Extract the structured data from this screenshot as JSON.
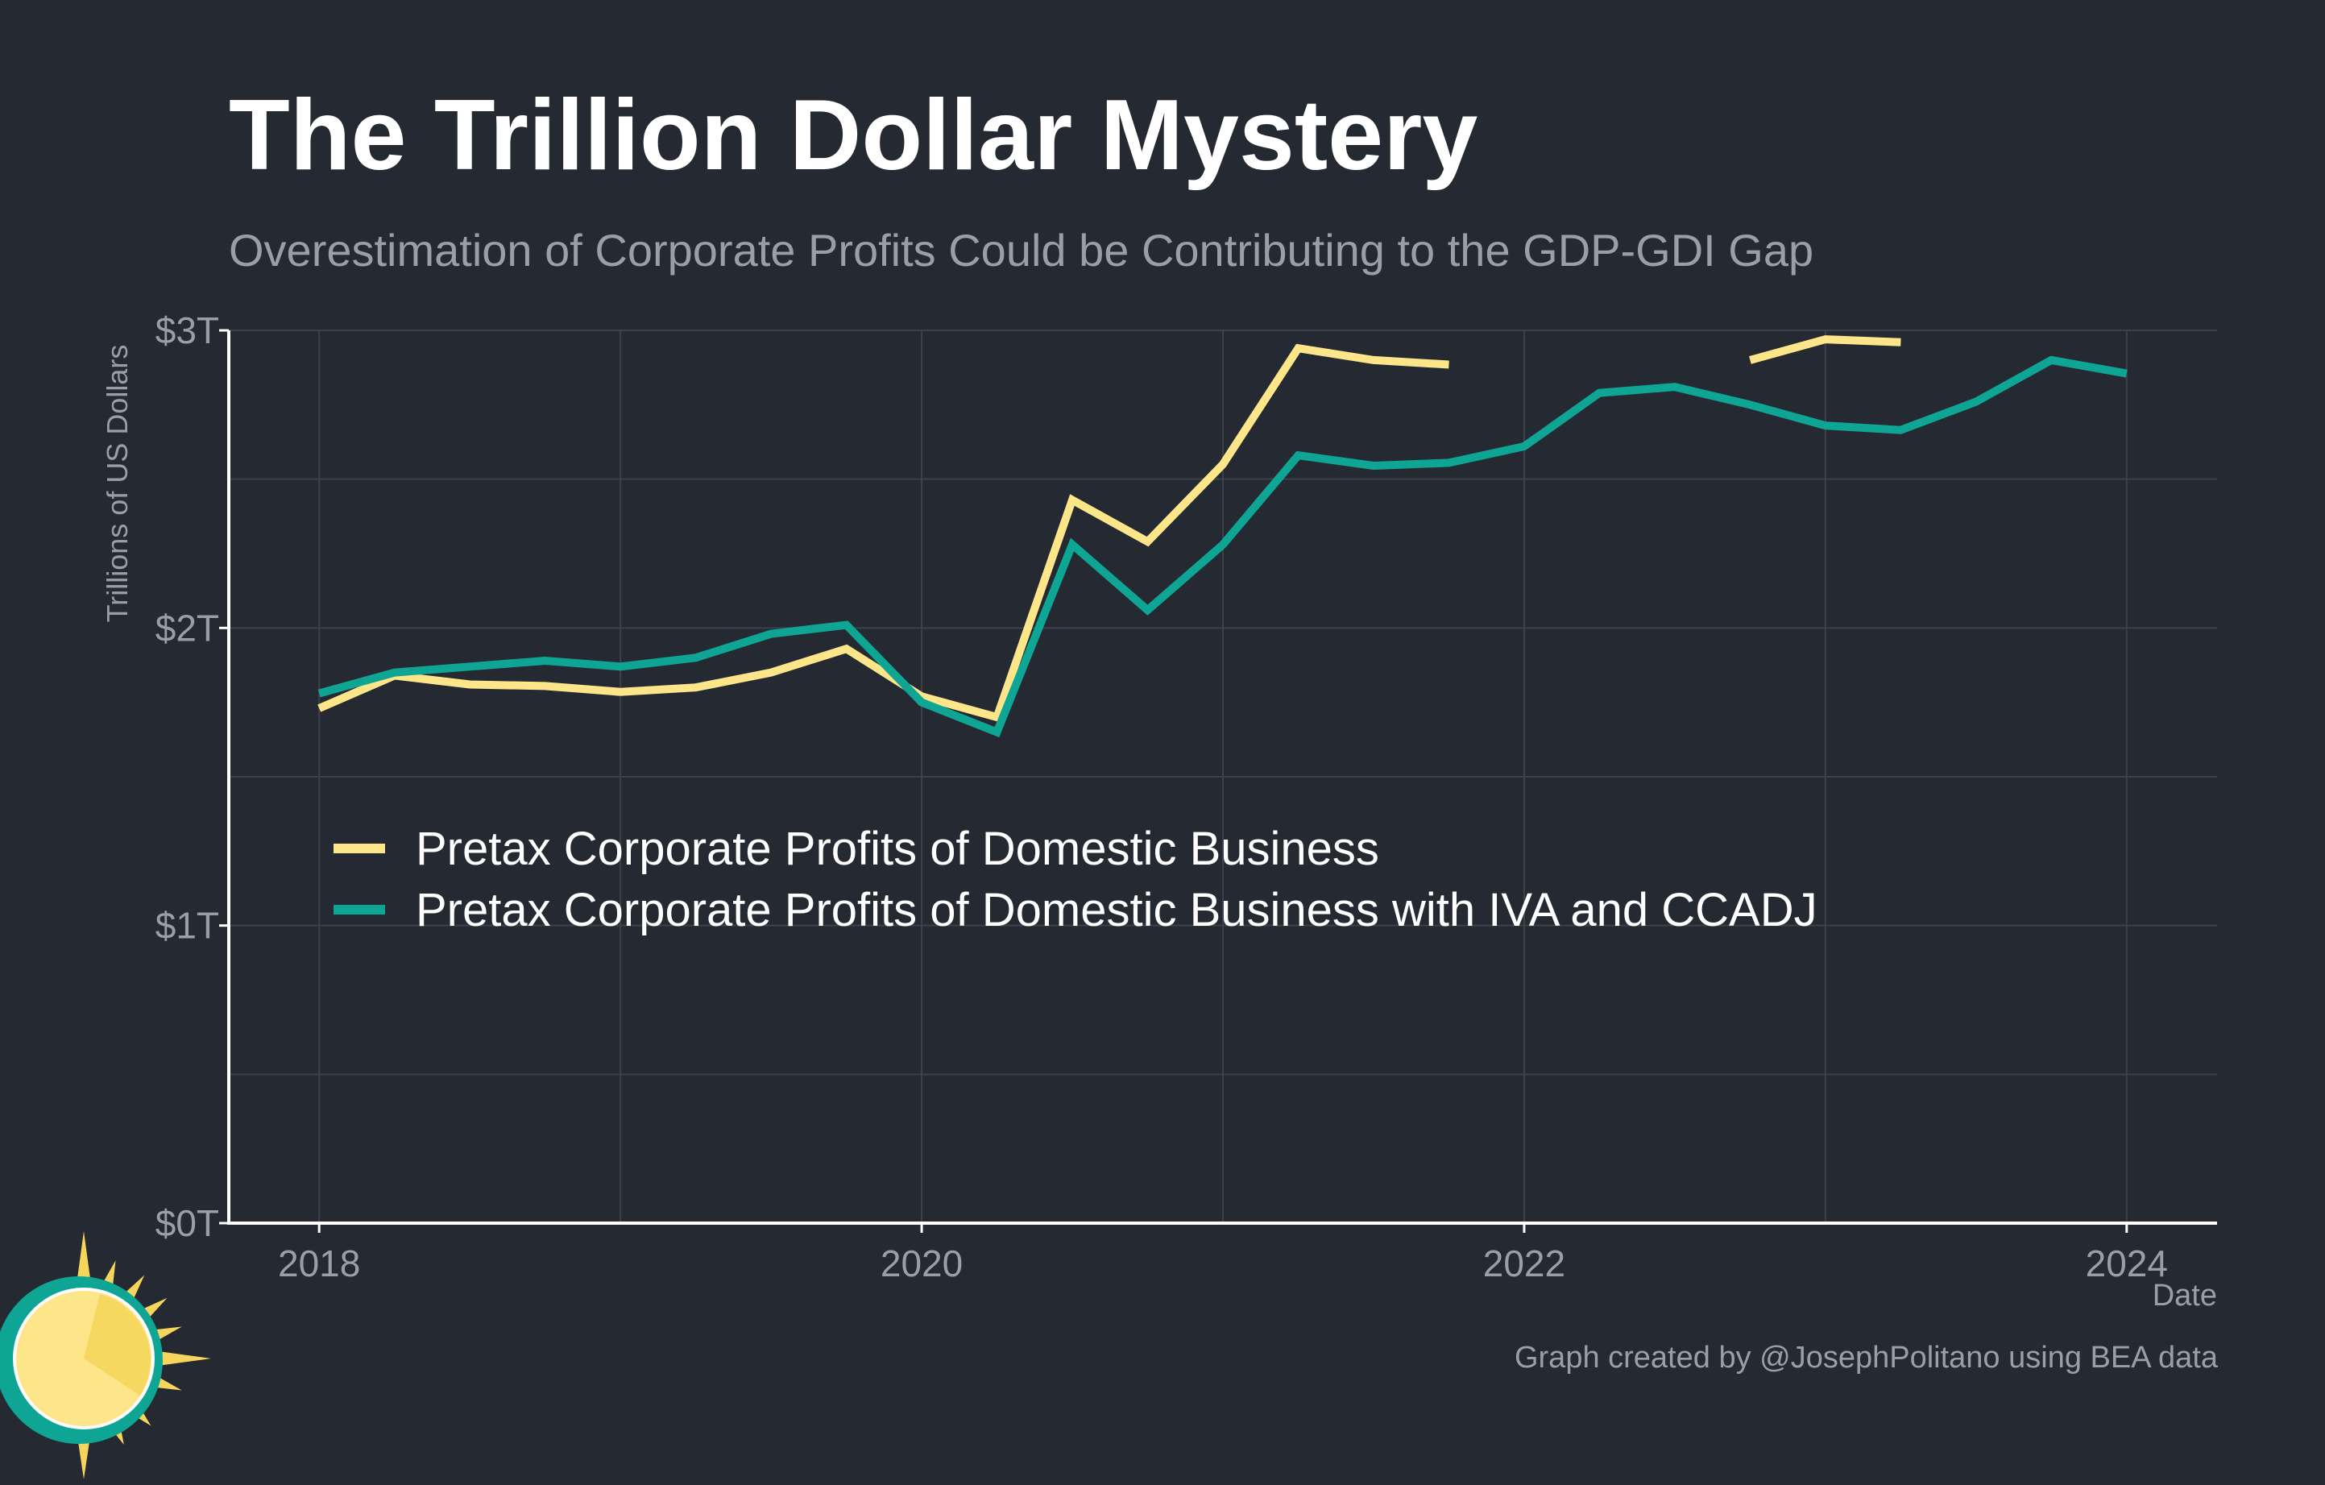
{
  "header": {
    "title": "The Trillion Dollar Mystery",
    "subtitle": "Overestimation of Corporate Profits Could be Contributing to the GDP-GDI Gap"
  },
  "footer": {
    "credit": "Graph created by @JosephPolitano using BEA data"
  },
  "colors": {
    "background": "#252932",
    "grid": "#3c414a",
    "axis": "#ffffff",
    "tick_text": "#9a9ea6",
    "series_1": "#fde68a",
    "series_2": "#0ea595",
    "logo_sun": "#fde68a",
    "logo_ring": "#0ea595"
  },
  "logo": {
    "icon": "sun-logo-icon"
  },
  "chart_data": {
    "type": "line",
    "xlabel": "Date",
    "ylabel": "Trillions of US Dollars",
    "xlim": [
      2017.7,
      2024.3
    ],
    "ylim": [
      0,
      3
    ],
    "x_ticks": [
      2018,
      2020,
      2022,
      2024
    ],
    "x_tick_labels": [
      "2018",
      "2020",
      "2022",
      "2024"
    ],
    "y_ticks": [
      0,
      1,
      2,
      3
    ],
    "y_tick_labels": [
      "$0T",
      "$1T",
      "$2T",
      "$3T"
    ],
    "grid": true,
    "legend_position": "center-left",
    "series": [
      {
        "name": "Pretax Corporate Profits of Domestic Business",
        "color": "#fde68a",
        "points": [
          [
            2018.0,
            1.73
          ],
          [
            2018.25,
            1.84
          ],
          [
            2018.5,
            1.81
          ],
          [
            2018.75,
            1.805
          ],
          [
            2019.0,
            1.785
          ],
          [
            2019.25,
            1.8
          ],
          [
            2019.5,
            1.85
          ],
          [
            2019.75,
            1.93
          ],
          [
            2020.0,
            1.77
          ],
          [
            2020.25,
            1.7
          ],
          [
            2020.5,
            2.43
          ],
          [
            2020.75,
            2.29
          ],
          [
            2021.0,
            2.55
          ],
          [
            2021.25,
            2.94
          ],
          [
            2021.5,
            2.9
          ],
          [
            2021.75,
            2.885
          ],
          [
            2022.0,
            null
          ],
          [
            2022.25,
            null
          ],
          [
            2022.5,
            null
          ],
          [
            2022.75,
            2.9
          ],
          [
            2023.0,
            2.97
          ],
          [
            2023.25,
            2.96
          ]
        ]
      },
      {
        "name": "Pretax Corporate Profits of Domestic Business with IVA and CCADJ",
        "color": "#0ea595",
        "points": [
          [
            2018.0,
            1.78
          ],
          [
            2018.25,
            1.85
          ],
          [
            2018.5,
            1.87
          ],
          [
            2018.75,
            1.89
          ],
          [
            2019.0,
            1.87
          ],
          [
            2019.25,
            1.9
          ],
          [
            2019.5,
            1.98
          ],
          [
            2019.75,
            2.01
          ],
          [
            2020.0,
            1.75
          ],
          [
            2020.25,
            1.65
          ],
          [
            2020.5,
            2.28
          ],
          [
            2020.75,
            2.06
          ],
          [
            2021.0,
            2.28
          ],
          [
            2021.25,
            2.58
          ],
          [
            2021.5,
            2.545
          ],
          [
            2021.75,
            2.555
          ],
          [
            2022.0,
            2.61
          ],
          [
            2022.25,
            2.79
          ],
          [
            2022.5,
            2.81
          ],
          [
            2022.75,
            2.75
          ],
          [
            2023.0,
            2.68
          ],
          [
            2023.25,
            2.665
          ],
          [
            2023.5,
            2.76
          ],
          [
            2023.75,
            2.9
          ],
          [
            2024.0,
            2.855
          ]
        ]
      }
    ]
  }
}
